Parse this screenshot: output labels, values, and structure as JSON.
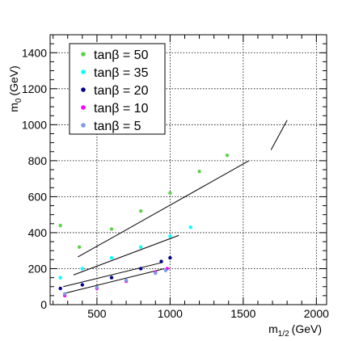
{
  "chart_data": {
    "type": "scatter",
    "title": "",
    "xlabel": "m",
    "xlabel_sub": "1/2",
    "xlabel_unit": "(GeV)",
    "ylabel": "m",
    "ylabel_sub": "0",
    "ylabel_unit": "(GeV)",
    "xlim": [
      180,
      2070
    ],
    "ylim": [
      0,
      1500
    ],
    "xticks": [
      500,
      1000,
      1500,
      2000
    ],
    "xtick_labels": [
      "500",
      "1000",
      "1500",
      "2000"
    ],
    "yticks": [
      0,
      200,
      400,
      600,
      800,
      1000,
      1200,
      1400
    ],
    "ytick_labels": [
      "0",
      "200",
      "400",
      "600",
      "800",
      "1000",
      "1200",
      "1400"
    ],
    "grid": true,
    "legend_position": "top-left",
    "series": [
      {
        "name": "tanβ = 50",
        "color": "#5fd24a",
        "x": [
          250,
          380,
          600,
          800,
          1000,
          1200,
          1390
        ],
        "y": [
          440,
          320,
          420,
          520,
          620,
          740,
          830
        ]
      },
      {
        "name": "tanβ = 35",
        "color": "#00ffff",
        "x": [
          250,
          400,
          600,
          800,
          1000,
          1140
        ],
        "y": [
          150,
          200,
          260,
          320,
          380,
          430
        ]
      },
      {
        "name": "tanβ = 20",
        "color": "#00008b",
        "x": [
          250,
          400,
          600,
          800,
          940,
          1000
        ],
        "y": [
          90,
          110,
          150,
          200,
          240,
          260
        ]
      },
      {
        "name": "tanβ = 10",
        "color": "#ff00ff",
        "x": [
          280,
          500,
          700,
          900,
          980
        ],
        "y": [
          50,
          90,
          130,
          180,
          200
        ]
      },
      {
        "name": "tanβ = 5",
        "color": "#7d9be6",
        "x": [
          280,
          500,
          700,
          900,
          970
        ],
        "y": [
          60,
          95,
          135,
          175,
          190
        ]
      }
    ],
    "lines": [
      {
        "x": [
          370,
          1540
        ],
        "y": [
          265,
          800
        ],
        "color": "#000000"
      },
      {
        "x": [
          1690,
          1800
        ],
        "y": [
          860,
          1025
        ],
        "color": "#000000"
      },
      {
        "x": [
          340,
          1060
        ],
        "y": [
          165,
          385
        ],
        "color": "#000000"
      },
      {
        "x": [
          270,
          950
        ],
        "y": [
          100,
          235
        ],
        "color": "#000000"
      },
      {
        "x": [
          290,
          960
        ],
        "y": [
          65,
          200
        ],
        "color": "#000000"
      }
    ]
  }
}
